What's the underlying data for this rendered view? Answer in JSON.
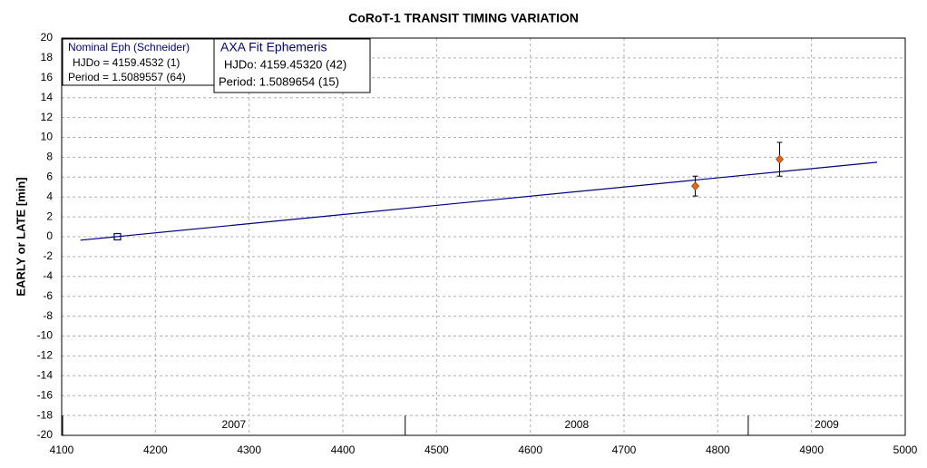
{
  "chart_data": {
    "type": "scatter",
    "title": "CoRoT-1 TRANSIT TIMING VARIATION",
    "y_label": "EARLY or LATE [min]",
    "xlim": [
      4100,
      5000
    ],
    "xticks": [
      4100,
      4200,
      4300,
      4400,
      4500,
      4600,
      4700,
      4800,
      4900,
      5000
    ],
    "ylim": [
      -20,
      20
    ],
    "yticks": [
      -20,
      -18,
      -16,
      -14,
      -12,
      -10,
      -8,
      -6,
      -4,
      -2,
      0,
      2,
      4,
      6,
      8,
      10,
      12,
      14,
      16,
      18,
      20
    ],
    "grid": true,
    "series": [
      {
        "mode": "line",
        "color": "#000080",
        "x": [
          4120,
          4970
        ],
        "values": [
          -0.35,
          7.5
        ]
      },
      {
        "mode": "marker",
        "marker": "square",
        "color": "#000080",
        "x": [
          4159.45
        ],
        "values": [
          0
        ]
      },
      {
        "mode": "marker",
        "marker": "diamond",
        "color": "#e8660c",
        "x": [
          4776,
          4866
        ],
        "values": [
          5.1,
          7.8
        ],
        "errors": [
          1.0,
          1.7
        ]
      }
    ],
    "year_bands": {
      "labels": [
        "2007",
        "2008",
        "2009"
      ],
      "boundaries": [
        4101,
        4466.5,
        4832.5
      ]
    },
    "annotations": [
      {
        "lines": [
          "Nominal Eph (Schneider)",
          "HJDo = 4159.4532 (1)",
          "Period = 1.5089557 (64)"
        ]
      },
      {
        "lines": [
          "AXA Fit Ephemeris",
          "HJDo:  4159.45320 (42)",
          "Period:  1.5089654 (15)"
        ]
      }
    ]
  }
}
